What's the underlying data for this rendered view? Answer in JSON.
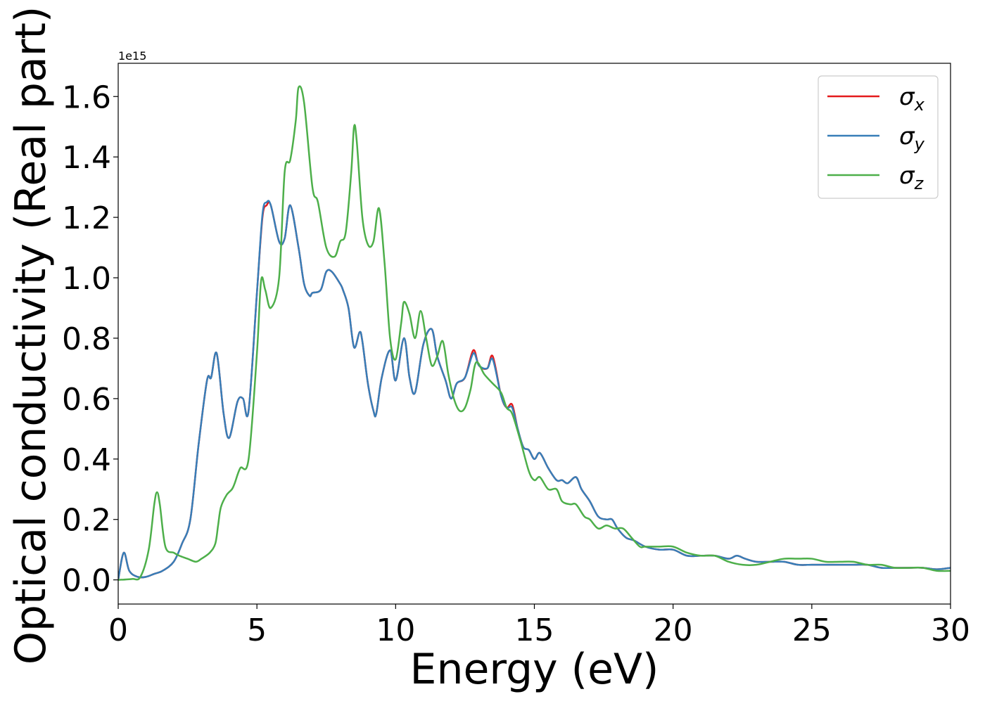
{
  "chart_data": {
    "type": "line",
    "xlabel": "Energy (eV)",
    "ylabel": "Optical conductivity (Real part)",
    "y_offset_label": "1e15",
    "xlim": [
      0,
      30
    ],
    "ylim": [
      -0.08,
      1.71
    ],
    "x_ticks": [
      0,
      5,
      10,
      15,
      20,
      25,
      30
    ],
    "x_tick_labels": [
      "0",
      "5",
      "10",
      "15",
      "20",
      "25",
      "30"
    ],
    "y_ticks": [
      0.0,
      0.2,
      0.4,
      0.6,
      0.8,
      1.0,
      1.2,
      1.4,
      1.6
    ],
    "y_tick_labels": [
      "0.0",
      "0.2",
      "0.4",
      "0.6",
      "0.8",
      "1.0",
      "1.2",
      "1.4",
      "1.6"
    ],
    "grid": false,
    "legend_position": "top-right",
    "series": [
      {
        "name": "σ",
        "subscript": "x",
        "color": "#e41a1c",
        "x": [
          0,
          0.2,
          0.4,
          0.7,
          1.0,
          1.3,
          1.6,
          2.0,
          2.3,
          2.6,
          2.9,
          3.2,
          3.35,
          3.55,
          3.8,
          4.0,
          4.3,
          4.5,
          4.7,
          5.0,
          5.2,
          5.35,
          5.5,
          5.8,
          6.0,
          6.2,
          6.5,
          6.7,
          6.9,
          7.0,
          7.3,
          7.5,
          7.7,
          8.0,
          8.1,
          8.3,
          8.5,
          8.7,
          8.8,
          9.0,
          9.2,
          9.3,
          9.5,
          9.8,
          10.0,
          10.3,
          10.5,
          10.7,
          11.0,
          11.3,
          11.5,
          11.8,
          12.0,
          12.2,
          12.5,
          12.8,
          13.0,
          13.3,
          13.5,
          13.8,
          14.0,
          14.2,
          14.4,
          14.6,
          14.8,
          15.0,
          15.2,
          15.5,
          15.8,
          16.0,
          16.2,
          16.5,
          16.7,
          17.0,
          17.3,
          17.6,
          17.8,
          18.0,
          18.3,
          18.6,
          19.0,
          19.5,
          20.0,
          20.5,
          21.0,
          21.5,
          22.0,
          22.3,
          22.6,
          23.0,
          23.5,
          24.0,
          24.5,
          25.0,
          25.5,
          26.0,
          26.5,
          27.0,
          27.5,
          28.0,
          28.5,
          29.0,
          29.5,
          30.0
        ],
        "values": [
          0.0,
          0.09,
          0.03,
          0.01,
          0.01,
          0.02,
          0.03,
          0.06,
          0.12,
          0.2,
          0.45,
          0.66,
          0.67,
          0.75,
          0.55,
          0.47,
          0.59,
          0.6,
          0.56,
          0.95,
          1.2,
          1.24,
          1.24,
          1.12,
          1.13,
          1.24,
          1.1,
          0.98,
          0.94,
          0.95,
          0.96,
          1.02,
          1.02,
          0.98,
          0.96,
          0.9,
          0.77,
          0.82,
          0.79,
          0.65,
          0.56,
          0.55,
          0.67,
          0.76,
          0.66,
          0.8,
          0.67,
          0.62,
          0.78,
          0.83,
          0.74,
          0.66,
          0.6,
          0.65,
          0.67,
          0.76,
          0.71,
          0.7,
          0.74,
          0.61,
          0.57,
          0.58,
          0.5,
          0.44,
          0.43,
          0.4,
          0.42,
          0.37,
          0.33,
          0.33,
          0.32,
          0.34,
          0.3,
          0.26,
          0.21,
          0.2,
          0.2,
          0.17,
          0.14,
          0.13,
          0.11,
          0.1,
          0.1,
          0.08,
          0.08,
          0.08,
          0.07,
          0.08,
          0.07,
          0.06,
          0.06,
          0.06,
          0.05,
          0.05,
          0.05,
          0.05,
          0.05,
          0.05,
          0.04,
          0.04,
          0.04,
          0.04,
          0.035,
          0.04
        ]
      },
      {
        "name": "σ",
        "subscript": "y",
        "color": "#377eb8",
        "x": [
          0,
          0.2,
          0.4,
          0.7,
          1.0,
          1.3,
          1.6,
          2.0,
          2.3,
          2.6,
          2.9,
          3.2,
          3.35,
          3.55,
          3.8,
          4.0,
          4.3,
          4.5,
          4.7,
          5.0,
          5.2,
          5.35,
          5.5,
          5.8,
          6.0,
          6.2,
          6.5,
          6.7,
          6.9,
          7.0,
          7.3,
          7.5,
          7.7,
          8.0,
          8.1,
          8.3,
          8.5,
          8.7,
          8.8,
          9.0,
          9.2,
          9.3,
          9.5,
          9.8,
          10.0,
          10.3,
          10.5,
          10.7,
          11.0,
          11.3,
          11.5,
          11.8,
          12.0,
          12.2,
          12.5,
          12.8,
          13.0,
          13.3,
          13.5,
          13.8,
          14.0,
          14.2,
          14.4,
          14.6,
          14.8,
          15.0,
          15.2,
          15.5,
          15.8,
          16.0,
          16.2,
          16.5,
          16.7,
          17.0,
          17.3,
          17.6,
          17.8,
          18.0,
          18.3,
          18.6,
          19.0,
          19.5,
          20.0,
          20.5,
          21.0,
          21.5,
          22.0,
          22.3,
          22.6,
          23.0,
          23.5,
          24.0,
          24.5,
          25.0,
          25.5,
          26.0,
          26.5,
          27.0,
          27.5,
          28.0,
          28.5,
          29.0,
          29.5,
          30.0
        ],
        "values": [
          0.0,
          0.09,
          0.03,
          0.01,
          0.01,
          0.02,
          0.03,
          0.06,
          0.12,
          0.2,
          0.45,
          0.66,
          0.67,
          0.75,
          0.55,
          0.47,
          0.59,
          0.6,
          0.56,
          0.95,
          1.21,
          1.25,
          1.24,
          1.12,
          1.13,
          1.24,
          1.1,
          0.98,
          0.94,
          0.95,
          0.96,
          1.02,
          1.02,
          0.98,
          0.96,
          0.9,
          0.77,
          0.82,
          0.79,
          0.65,
          0.56,
          0.55,
          0.67,
          0.76,
          0.66,
          0.8,
          0.67,
          0.62,
          0.78,
          0.83,
          0.74,
          0.66,
          0.6,
          0.65,
          0.67,
          0.75,
          0.71,
          0.7,
          0.73,
          0.61,
          0.57,
          0.57,
          0.5,
          0.44,
          0.43,
          0.4,
          0.42,
          0.37,
          0.33,
          0.33,
          0.32,
          0.34,
          0.3,
          0.26,
          0.21,
          0.2,
          0.2,
          0.17,
          0.14,
          0.13,
          0.11,
          0.1,
          0.1,
          0.08,
          0.08,
          0.08,
          0.07,
          0.08,
          0.07,
          0.06,
          0.06,
          0.06,
          0.05,
          0.05,
          0.05,
          0.05,
          0.05,
          0.05,
          0.04,
          0.04,
          0.04,
          0.04,
          0.035,
          0.04
        ]
      },
      {
        "name": "σ",
        "subscript": "z",
        "color": "#4daf4a",
        "x": [
          0,
          0.5,
          0.8,
          1.1,
          1.3,
          1.4,
          1.5,
          1.7,
          2.0,
          2.2,
          2.5,
          2.8,
          3.0,
          3.3,
          3.5,
          3.6,
          3.7,
          3.9,
          4.1,
          4.2,
          4.4,
          4.7,
          5.0,
          5.15,
          5.3,
          5.5,
          5.8,
          6.0,
          6.2,
          6.4,
          6.5,
          6.7,
          7.0,
          7.2,
          7.5,
          7.8,
          8.0,
          8.2,
          8.4,
          8.5,
          8.6,
          8.8,
          9.0,
          9.2,
          9.4,
          9.6,
          9.8,
          10.0,
          10.2,
          10.3,
          10.5,
          10.7,
          10.9,
          11.1,
          11.3,
          11.5,
          11.7,
          11.9,
          12.1,
          12.3,
          12.5,
          12.7,
          12.9,
          13.2,
          13.5,
          13.8,
          14.0,
          14.2,
          14.5,
          14.8,
          15.0,
          15.2,
          15.5,
          15.8,
          16.0,
          16.3,
          16.5,
          16.8,
          17.0,
          17.3,
          17.6,
          17.9,
          18.2,
          18.5,
          18.8,
          19.0,
          19.5,
          20.0,
          20.5,
          21.0,
          21.5,
          22.0,
          22.5,
          23.0,
          23.5,
          24.0,
          24.5,
          25.0,
          25.5,
          26.0,
          26.5,
          27.0,
          27.5,
          28.0,
          28.5,
          29.0,
          29.5,
          30.0
        ],
        "values": [
          0.0,
          0.003,
          0.01,
          0.1,
          0.25,
          0.29,
          0.25,
          0.11,
          0.09,
          0.08,
          0.07,
          0.06,
          0.07,
          0.09,
          0.12,
          0.18,
          0.24,
          0.28,
          0.3,
          0.32,
          0.37,
          0.4,
          0.75,
          0.99,
          0.96,
          0.9,
          1.0,
          1.35,
          1.39,
          1.52,
          1.63,
          1.58,
          1.3,
          1.25,
          1.1,
          1.07,
          1.12,
          1.15,
          1.35,
          1.5,
          1.45,
          1.2,
          1.11,
          1.12,
          1.23,
          1.05,
          0.8,
          0.73,
          0.85,
          0.92,
          0.88,
          0.8,
          0.89,
          0.8,
          0.71,
          0.74,
          0.79,
          0.68,
          0.6,
          0.56,
          0.57,
          0.63,
          0.72,
          0.68,
          0.65,
          0.62,
          0.57,
          0.55,
          0.46,
          0.36,
          0.33,
          0.34,
          0.3,
          0.3,
          0.26,
          0.25,
          0.25,
          0.21,
          0.2,
          0.17,
          0.18,
          0.17,
          0.17,
          0.14,
          0.11,
          0.11,
          0.11,
          0.11,
          0.09,
          0.08,
          0.08,
          0.06,
          0.05,
          0.05,
          0.06,
          0.07,
          0.07,
          0.07,
          0.06,
          0.06,
          0.06,
          0.05,
          0.05,
          0.04,
          0.04,
          0.04,
          0.03,
          0.03
        ]
      }
    ]
  }
}
